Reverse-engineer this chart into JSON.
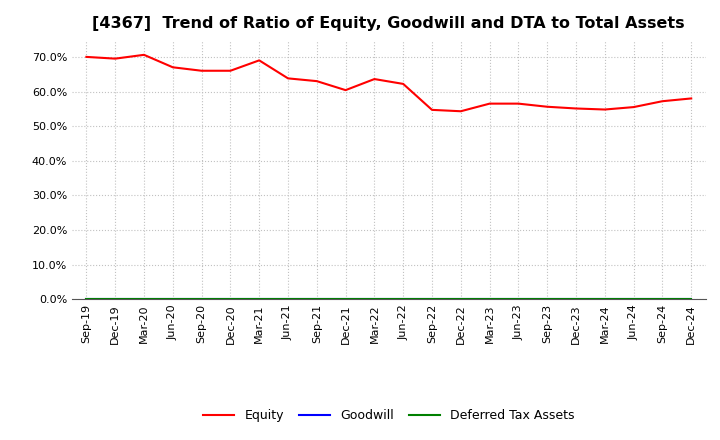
{
  "title": "[4367]  Trend of Ratio of Equity, Goodwill and DTA to Total Assets",
  "x_labels": [
    "Sep-19",
    "Dec-19",
    "Mar-20",
    "Jun-20",
    "Sep-20",
    "Dec-20",
    "Mar-21",
    "Jun-21",
    "Sep-21",
    "Dec-21",
    "Mar-22",
    "Jun-22",
    "Sep-22",
    "Dec-22",
    "Mar-23",
    "Jun-23",
    "Sep-23",
    "Dec-23",
    "Mar-24",
    "Jun-24",
    "Sep-24",
    "Dec-24"
  ],
  "equity": [
    0.7,
    0.695,
    0.706,
    0.67,
    0.66,
    0.66,
    0.69,
    0.638,
    0.63,
    0.604,
    0.636,
    0.622,
    0.547,
    0.543,
    0.565,
    0.565,
    0.556,
    0.551,
    0.548,
    0.555,
    0.572,
    0.58
  ],
  "goodwill": [
    0.0,
    0.0,
    0.0,
    0.0,
    0.0,
    0.0,
    0.0,
    0.0,
    0.0,
    0.0,
    0.0,
    0.0,
    0.0,
    0.0,
    0.0,
    0.0,
    0.0,
    0.0,
    0.0,
    0.0,
    0.0,
    0.0
  ],
  "dta": [
    0.0,
    0.0,
    0.0,
    0.0,
    0.0,
    0.0,
    0.0,
    0.0,
    0.0,
    0.0,
    0.0,
    0.0,
    0.0,
    0.0,
    0.0,
    0.0,
    0.0,
    0.0,
    0.0,
    0.0,
    0.0,
    0.0
  ],
  "equity_color": "#FF0000",
  "goodwill_color": "#0000FF",
  "dta_color": "#008000",
  "ylim": [
    0.0,
    0.75
  ],
  "yticks": [
    0.0,
    0.1,
    0.2,
    0.3,
    0.4,
    0.5,
    0.6,
    0.7
  ],
  "background_color": "#FFFFFF",
  "plot_bg_color": "#FFFFFF",
  "grid_color": "#BBBBBB",
  "title_fontsize": 11.5,
  "tick_fontsize": 8,
  "legend_labels": [
    "Equity",
    "Goodwill",
    "Deferred Tax Assets"
  ]
}
